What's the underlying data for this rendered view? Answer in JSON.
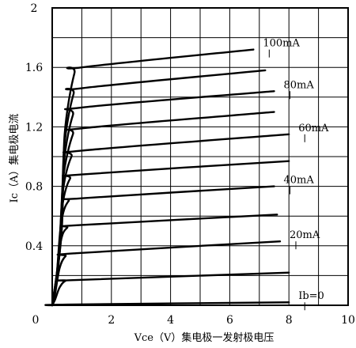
{
  "chart_data": {
    "type": "line",
    "xlabel": "Vce（V）集电极一发射极电压",
    "ylabel": "Ic（A）集电极电流",
    "xlim": [
      0,
      10
    ],
    "ylim": [
      0,
      2
    ],
    "x_ticks": [
      0,
      2,
      4,
      6,
      8,
      10
    ],
    "x_tick_labels": [
      "0",
      "2",
      "4",
      "6",
      "8",
      "10"
    ],
    "y_ticks": [
      0.4,
      0.8,
      1.2,
      1.6,
      2
    ],
    "y_tick_labels": [
      "0.4",
      "0.8",
      "1.2",
      "1.6",
      "2"
    ],
    "grid": true,
    "series": [
      {
        "name": "Ib=0",
        "values": [
          [
            0,
            0
          ],
          [
            0.5,
            0.005
          ],
          [
            8,
            0.02
          ]
        ]
      },
      {
        "values": [
          [
            0,
            0
          ],
          [
            0.1,
            0.04
          ],
          [
            0.25,
            0.12
          ],
          [
            0.45,
            0.165
          ],
          [
            0.8,
            0.17
          ],
          [
            8,
            0.22
          ]
        ]
      },
      {
        "name": "20mA",
        "values": [
          [
            0,
            0
          ],
          [
            0.1,
            0.08
          ],
          [
            0.25,
            0.25
          ],
          [
            0.45,
            0.33
          ],
          [
            0.8,
            0.35
          ],
          [
            7.7,
            0.43
          ]
        ]
      },
      {
        "values": [
          [
            0,
            0
          ],
          [
            0.12,
            0.15
          ],
          [
            0.28,
            0.42
          ],
          [
            0.5,
            0.52
          ],
          [
            1,
            0.54
          ],
          [
            7.6,
            0.61
          ]
        ]
      },
      {
        "name": "40mA",
        "values": [
          [
            0,
            0
          ],
          [
            0.15,
            0.2
          ],
          [
            0.3,
            0.55
          ],
          [
            0.55,
            0.7
          ],
          [
            1,
            0.72
          ],
          [
            7.5,
            0.8
          ]
        ]
      },
      {
        "values": [
          [
            0,
            0
          ],
          [
            0.2,
            0.25
          ],
          [
            0.33,
            0.65
          ],
          [
            0.6,
            0.85
          ],
          [
            1,
            0.88
          ],
          [
            8,
            0.97
          ]
        ]
      },
      {
        "name": "60mA",
        "values": [
          [
            0,
            0
          ],
          [
            0.22,
            0.3
          ],
          [
            0.35,
            0.75
          ],
          [
            0.65,
            1.0
          ],
          [
            1,
            1.04
          ],
          [
            8,
            1.15
          ]
        ]
      },
      {
        "values": [
          [
            0,
            0
          ],
          [
            0.25,
            0.35
          ],
          [
            0.37,
            0.85
          ],
          [
            0.7,
            1.15
          ],
          [
            1,
            1.19
          ],
          [
            7.5,
            1.3
          ]
        ]
      },
      {
        "name": "80mA",
        "values": [
          [
            0,
            0
          ],
          [
            0.27,
            0.4
          ],
          [
            0.39,
            0.95
          ],
          [
            0.7,
            1.28
          ],
          [
            1,
            1.33
          ],
          [
            7.5,
            1.44
          ]
        ]
      },
      {
        "values": [
          [
            0,
            0
          ],
          [
            0.3,
            0.45
          ],
          [
            0.4,
            1.05
          ],
          [
            0.72,
            1.42
          ],
          [
            1,
            1.46
          ],
          [
            7.2,
            1.58
          ]
        ]
      },
      {
        "name": "100mA",
        "values": [
          [
            0,
            0
          ],
          [
            0.32,
            0.5
          ],
          [
            0.42,
            1.15
          ],
          [
            0.75,
            1.56
          ],
          [
            1,
            1.6
          ],
          [
            6.8,
            1.72
          ]
        ]
      }
    ]
  }
}
